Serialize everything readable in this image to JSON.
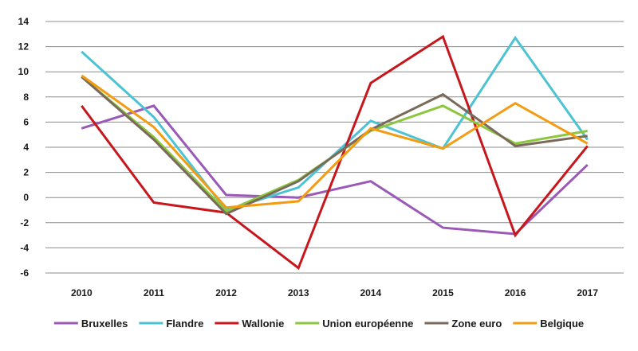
{
  "chart_data": {
    "type": "line",
    "categories": [
      "2010",
      "2011",
      "2012",
      "2013",
      "2014",
      "2015",
      "2016",
      "2017"
    ],
    "ylim": [
      -6,
      14
    ],
    "yticks": [
      -6,
      -4,
      -2,
      0,
      2,
      4,
      6,
      8,
      10,
      12,
      14
    ],
    "grid": "horizontal",
    "legend_position": "bottom",
    "series": [
      {
        "name": "Bruxelles",
        "color": "#9b59b6",
        "values": [
          5.5,
          7.3,
          0.2,
          0.0,
          1.3,
          -2.4,
          -2.9,
          2.6
        ]
      },
      {
        "name": "Flandre",
        "color": "#4bc3d3",
        "values": [
          11.6,
          6.4,
          -1.0,
          0.8,
          6.1,
          3.9,
          12.7,
          4.6
        ]
      },
      {
        "name": "Wallonie",
        "color": "#c8161d",
        "values": [
          7.3,
          -0.4,
          -1.2,
          -5.6,
          9.1,
          12.8,
          -3.0,
          4.1
        ]
      },
      {
        "name": "Union européenne",
        "color": "#8cc63f",
        "values": [
          9.6,
          4.8,
          -1.1,
          1.4,
          5.3,
          7.3,
          4.3,
          5.3
        ]
      },
      {
        "name": "Zone euro",
        "color": "#7a6a5a",
        "values": [
          9.6,
          4.6,
          -1.3,
          1.3,
          5.4,
          8.2,
          4.1,
          4.9
        ]
      },
      {
        "name": "Belgique",
        "color": "#f39c12",
        "values": [
          9.7,
          5.6,
          -0.8,
          -0.3,
          5.5,
          3.9,
          7.5,
          4.3
        ]
      }
    ]
  }
}
